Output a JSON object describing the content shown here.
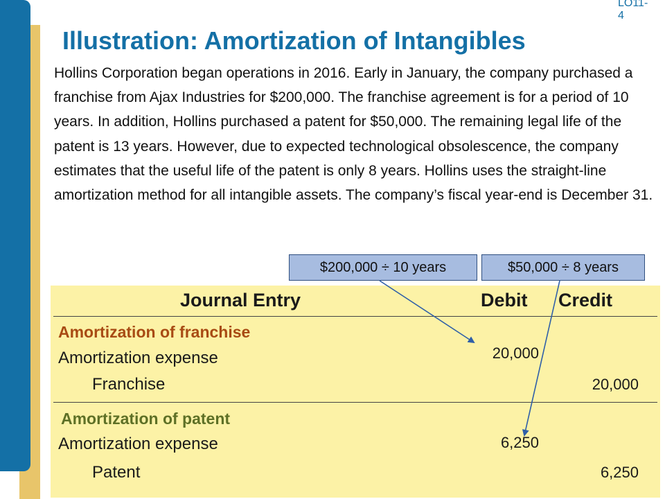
{
  "slide": {
    "lo_tag": "LO11-\n4",
    "title": "Illustration: Amortization of Intangibles",
    "body": "Hollins Corporation began operations in 2016. Early in January, the company purchased a franchise from Ajax Industries for $200,000. The franchise agreement is for a period of 10 years. In addition, Hollins purchased a patent for $50,000. The remaining legal life of the patent is 13 years. However, due to expected technological obsolescence, the company estimates that the useful life of the patent is only 8 years. Hollins uses the straight-line amortization method for all intangible assets. The company’s fiscal year-end is December 31."
  },
  "callouts": {
    "franchise_calc": "$200,000 ÷ 10 years",
    "patent_calc": "$50,000 ÷ 8 years"
  },
  "journal": {
    "headers": {
      "entry": "Journal Entry",
      "debit": "Debit",
      "credit": "Credit"
    },
    "franchise": {
      "label": "Amortization of franchise",
      "debit_account": "Amortization expense",
      "credit_account": "Franchise",
      "debit_amount": "20,000",
      "credit_amount": "20,000"
    },
    "patent": {
      "label": "Amortization of patent",
      "debit_account": "Amortization expense",
      "credit_account": "Patent",
      "debit_amount": "6,250",
      "credit_amount": "6,250"
    }
  },
  "colors": {
    "brand_blue": "#1470A6",
    "accent_gold": "#E8C56A",
    "panel_yellow": "#FCF2A6",
    "callout_blue": "#A7BCE0",
    "franchise_label": "#A84B14",
    "patent_label": "#5E7026",
    "arrow": "#2F5FA8"
  }
}
